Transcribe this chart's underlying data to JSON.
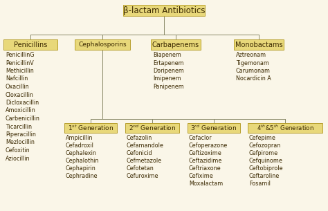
{
  "background_color": "#faf6e8",
  "box_fill": "#e8d87a",
  "box_edge": "#b8a030",
  "text_color": "#3a2800",
  "line_color": "#888866",
  "title": "β-lactam Antibiotics",
  "penicillins_title": "Penicillins",
  "penicillins_items": [
    "PenicillinG",
    "PenicillinV",
    "Methicillin",
    "Nafcillin",
    "Oxacillin",
    "Cloxacillin",
    "Dicloxacillin",
    "Amoxicillin",
    "Carbenicillin",
    "Ticarcillin",
    "Piperacillin",
    "Mezlocillin",
    "Cefoxitin",
    "Aziocillin"
  ],
  "cephalosporins_title": "Cephalosporins",
  "carbapenems_title": "Carbapenems",
  "carbapenems_items": [
    "Biapenem",
    "Ertapenem",
    "Doripenem",
    "Imipenem",
    "Panipenem"
  ],
  "monobactams_title": "Monobactams",
  "monobactams_items": [
    "Aztreonam",
    "Tigemonam",
    "Carumonam",
    "Nocardicin A"
  ],
  "gen1_items": [
    "Ampicillin",
    "Cefadroxil",
    "Cephalexin",
    "Cephalothin",
    "Cephapirin",
    "Cephradine"
  ],
  "gen2_items": [
    "Cefazolin",
    "Cefamandole",
    "Cefonicid",
    "Cefmetazole",
    "Cefotetan",
    "Cefuroxime"
  ],
  "gen3_items": [
    "Cefaclor",
    "Cefoperazone",
    "Ceftizoxime",
    "Ceftazidime",
    "Ceftriaxone",
    "Cefixime",
    "Moxalactam"
  ],
  "gen4_items": [
    "Cefepime",
    "Cefozopran",
    "Cefpirome",
    "Cefquinome",
    "Ceftobiprole",
    "Ceftaroline",
    "Fosamil"
  ],
  "font_size_title": 8.5,
  "font_size_box": 7.0,
  "font_size_items": 5.8,
  "font_size_gen_box": 6.5
}
